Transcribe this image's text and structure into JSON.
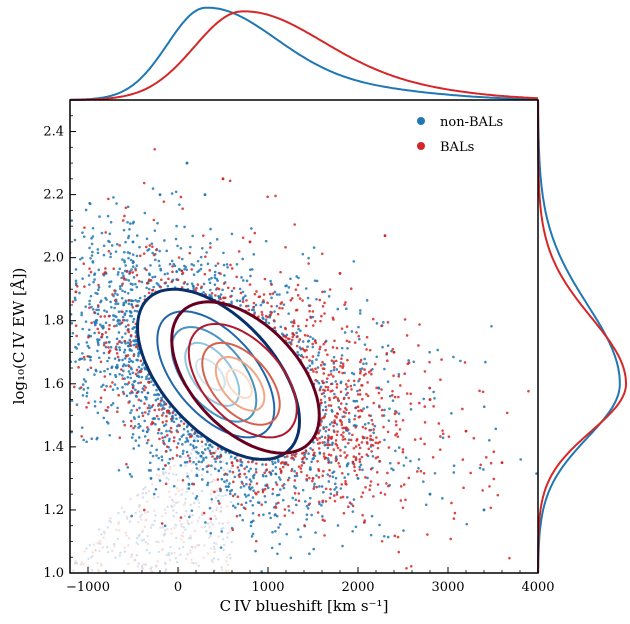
{
  "chart_data": {
    "type": "scatter",
    "xlabel": "C IV blueshift [km s⁻¹]",
    "ylabel": "log₁₀(C IV EW [Å])",
    "xlim": [
      -1200,
      4000
    ],
    "ylim": [
      1.0,
      2.5
    ],
    "x_ticks": [
      {
        "value": -1000,
        "label": "−1000"
      },
      {
        "value": 0,
        "label": "0"
      },
      {
        "value": 1000,
        "label": "1000"
      },
      {
        "value": 2000,
        "label": "2000"
      },
      {
        "value": 3000,
        "label": "3000"
      },
      {
        "value": 4000,
        "label": "4000"
      }
    ],
    "y_ticks": [
      {
        "value": 1.0,
        "label": "1.0"
      },
      {
        "value": 1.2,
        "label": "1.2"
      },
      {
        "value": 1.4,
        "label": "1.4"
      },
      {
        "value": 1.6,
        "label": "1.6"
      },
      {
        "value": 1.8,
        "label": "1.8"
      },
      {
        "value": 2.0,
        "label": "2.0"
      },
      {
        "value": 2.2,
        "label": "2.2"
      },
      {
        "value": 2.4,
        "label": "2.4"
      }
    ],
    "grid": false,
    "legend_position": "top-right",
    "series": [
      {
        "name": "non-BALs",
        "color": "#1f77b4",
        "density_peak": {
          "x": 300,
          "y": 1.62
        },
        "spread": {
          "x": 650,
          "y": 0.2
        },
        "density_correlation": -0.55,
        "marginal_x_peak": 300,
        "marginal_y_peak": 1.6,
        "sample_points": [
          {
            "x": -800,
            "y": 1.95
          },
          {
            "x": -500,
            "y": 2.05
          },
          {
            "x": -200,
            "y": 2.2
          },
          {
            "x": 100,
            "y": 2.3
          },
          {
            "x": 300,
            "y": 2.2
          },
          {
            "x": 0,
            "y": 1.55
          },
          {
            "x": 500,
            "y": 1.45
          },
          {
            "x": 1200,
            "y": 1.35
          },
          {
            "x": 2000,
            "y": 1.3
          },
          {
            "x": 2800,
            "y": 1.25
          },
          {
            "x": 3400,
            "y": 1.2
          },
          {
            "x": -300,
            "y": 1.3
          }
        ]
      },
      {
        "name": "BALs",
        "color": "#d62728",
        "density_peak": {
          "x": 700,
          "y": 1.6
        },
        "spread": {
          "x": 750,
          "y": 0.19
        },
        "density_correlation": -0.5,
        "marginal_x_peak": 700,
        "marginal_y_peak": 1.6,
        "sample_points": [
          {
            "x": 500,
            "y": 2.25
          },
          {
            "x": 800,
            "y": 2.05
          },
          {
            "x": 1800,
            "y": 1.95
          },
          {
            "x": 2400,
            "y": 1.7
          },
          {
            "x": 2800,
            "y": 1.55
          },
          {
            "x": 3200,
            "y": 1.45
          },
          {
            "x": 3600,
            "y": 1.35
          },
          {
            "x": 2300,
            "y": 2.07
          },
          {
            "x": 600,
            "y": 1.35
          },
          {
            "x": 1500,
            "y": 1.3
          }
        ]
      }
    ],
    "contours": [
      {
        "series": "non-BALs",
        "level": "outer",
        "color": "#08306b",
        "cx": 450,
        "cy": 1.63,
        "rx": 900,
        "ry": 0.27,
        "tilt": -0.55
      },
      {
        "series": "non-BALs",
        "level": "1",
        "color": "#2166ac",
        "cx": 420,
        "cy": 1.63,
        "rx": 650,
        "ry": 0.2,
        "tilt": -0.55
      },
      {
        "series": "non-BALs",
        "level": "2",
        "color": "#4393c3",
        "cx": 400,
        "cy": 1.63,
        "rx": 470,
        "ry": 0.15,
        "tilt": -0.55
      },
      {
        "series": "non-BALs",
        "level": "3",
        "color": "#92c5de",
        "cx": 380,
        "cy": 1.63,
        "rx": 300,
        "ry": 0.1,
        "tilt": -0.55
      },
      {
        "series": "non-BALs",
        "level": "4",
        "color": "#d1e5f0",
        "cx": 360,
        "cy": 1.63,
        "rx": 160,
        "ry": 0.05,
        "tilt": -0.55
      },
      {
        "series": "BALs",
        "level": "outer",
        "color": "#67001f",
        "cx": 750,
        "cy": 1.62,
        "rx": 820,
        "ry": 0.24,
        "tilt": -0.5
      },
      {
        "series": "BALs",
        "level": "1",
        "color": "#b2182b",
        "cx": 720,
        "cy": 1.61,
        "rx": 600,
        "ry": 0.18,
        "tilt": -0.5
      },
      {
        "series": "BALs",
        "level": "2",
        "color": "#d6604d",
        "cx": 700,
        "cy": 1.6,
        "rx": 430,
        "ry": 0.13,
        "tilt": -0.5
      },
      {
        "series": "BALs",
        "level": "3",
        "color": "#f4a582",
        "cx": 690,
        "cy": 1.6,
        "rx": 270,
        "ry": 0.085,
        "tilt": -0.5
      },
      {
        "series": "BALs",
        "level": "4",
        "color": "#fddbc7",
        "cx": 680,
        "cy": 1.6,
        "rx": 140,
        "ry": 0.045,
        "tilt": -0.5
      }
    ]
  }
}
